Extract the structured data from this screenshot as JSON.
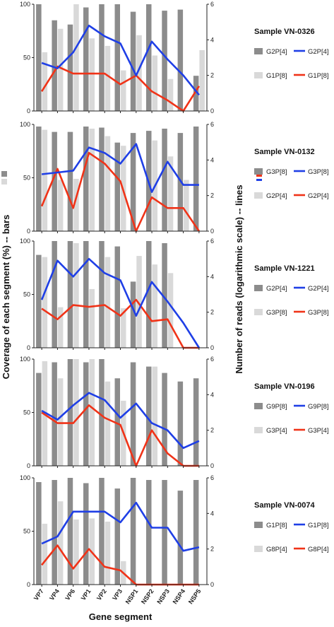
{
  "chart_data": {
    "type": "bar+line",
    "y_left_label": "Coverage of each segment (%) -- bars",
    "y_right_label": "Number of reads (logarithmic scale) -- lines",
    "x_label": "Gene segment",
    "categories": [
      "VP7",
      "VP4",
      "VP6",
      "VP1",
      "VP2",
      "VP3",
      "NSP1",
      "NSP2",
      "NSP3",
      "NSP4",
      "NSP5"
    ],
    "left_axis": {
      "min": 0,
      "max": 100,
      "ticks": [
        "0",
        "50",
        "100"
      ]
    },
    "right_axis": {
      "min": 0,
      "max": 6,
      "ticks": [
        "0",
        "2",
        "4",
        "6"
      ]
    },
    "colors": {
      "bar_dark": "#8c8c8c",
      "bar_light": "#d9d9d9",
      "line_blue": "#1f3fe6",
      "line_red": "#f03318"
    },
    "panels": [
      {
        "title": "Sample VN-0326",
        "bars_dark": {
          "name": "G2P[4]",
          "values": [
            100,
            85,
            81,
            97,
            100,
            100,
            93,
            100,
            94,
            95,
            33
          ]
        },
        "bars_light": {
          "name": "G1P[8]",
          "values": [
            55,
            77,
            100,
            68,
            61,
            38,
            71,
            52,
            30,
            0,
            57
          ]
        },
        "line_blue": {
          "name": "G2P[4]",
          "values": [
            2.7,
            2.4,
            3.3,
            4.8,
            4.2,
            3.8,
            2.0,
            3.9,
            2.9,
            2.0,
            0.9
          ]
        },
        "line_red": {
          "name": "G1P[8]",
          "values": [
            1.1,
            2.5,
            2.1,
            2.1,
            2.1,
            1.5,
            2.0,
            1.1,
            0.6,
            0.0,
            1.4
          ]
        }
      },
      {
        "title": "Sample VN-0132",
        "bars_dark": {
          "name": "G3P[8]",
          "values": [
            98,
            93,
            93,
            98,
            97,
            83,
            92,
            94,
            96,
            92,
            98
          ]
        },
        "bars_light": {
          "name": "G2P[4]",
          "values": [
            95,
            48,
            49,
            96,
            89,
            80,
            0,
            85,
            70,
            48,
            0
          ]
        },
        "line_blue": {
          "name": "G3P[8]",
          "values": [
            3.2,
            3.3,
            3.4,
            4.7,
            4.4,
            3.8,
            4.9,
            2.2,
            3.9,
            2.6,
            2.6
          ]
        },
        "line_red": {
          "name": "G2P[4]",
          "values": [
            1.4,
            3.5,
            1.3,
            4.4,
            3.8,
            2.8,
            0.0,
            1.9,
            1.3,
            1.3,
            0.0
          ]
        }
      },
      {
        "title": "Sample VN-1221",
        "bars_dark": {
          "name": "G2P[4]",
          "values": [
            87,
            100,
            100,
            100,
            100,
            95,
            62,
            100,
            98,
            0,
            0
          ]
        },
        "bars_light": {
          "name": "G3P[8]",
          "values": [
            85,
            38,
            98,
            55,
            85,
            37,
            86,
            78,
            70,
            0,
            0
          ]
        },
        "line_blue": {
          "name": "G2P[4]",
          "values": [
            2.7,
            4.9,
            4.0,
            5.0,
            4.2,
            3.8,
            1.8,
            3.7,
            2.6,
            1.4,
            0.0
          ]
        },
        "line_red": {
          "name": "G3P[8]",
          "values": [
            2.2,
            1.6,
            2.4,
            2.3,
            2.4,
            1.8,
            2.7,
            1.5,
            1.6,
            0.0,
            0.0
          ]
        }
      },
      {
        "title": "Sample VN-0196",
        "bars_dark": {
          "name": "G9P[8]",
          "values": [
            87,
            97,
            100,
            97,
            100,
            82,
            97,
            93,
            87,
            79,
            82
          ]
        },
        "bars_light": {
          "name": "G3P[4]",
          "values": [
            98,
            82,
            100,
            100,
            79,
            61,
            0,
            93,
            0,
            0,
            0
          ]
        },
        "line_blue": {
          "name": "G9P[8]",
          "values": [
            3.1,
            2.6,
            3.4,
            4.1,
            3.7,
            2.7,
            3.5,
            2.4,
            2.0,
            1.0,
            1.4
          ]
        },
        "line_red": {
          "name": "G3P[4]",
          "values": [
            3.0,
            2.4,
            2.4,
            3.4,
            2.7,
            2.3,
            0.0,
            2.0,
            0.7,
            0.0,
            0.0
          ]
        }
      },
      {
        "title": "Sample VN-0074",
        "bars_dark": {
          "name": "G1P[8]",
          "values": [
            96,
            98,
            100,
            95,
            100,
            90,
            100,
            98,
            98,
            88,
            98
          ]
        },
        "bars_light": {
          "name": "G8P[4]",
          "values": [
            57,
            78,
            61,
            62,
            59,
            22,
            0,
            0,
            0,
            0,
            0
          ]
        },
        "line_blue": {
          "name": "G1P[8]",
          "values": [
            2.3,
            2.7,
            4.1,
            4.1,
            4.1,
            3.5,
            4.6,
            3.2,
            3.2,
            1.9,
            2.1
          ]
        },
        "line_red": {
          "name": "G8P[4]",
          "values": [
            1.1,
            2.2,
            0.9,
            2.0,
            1.0,
            0.8,
            0.0,
            0.0,
            0.0,
            0.0,
            0.0
          ]
        }
      }
    ]
  }
}
